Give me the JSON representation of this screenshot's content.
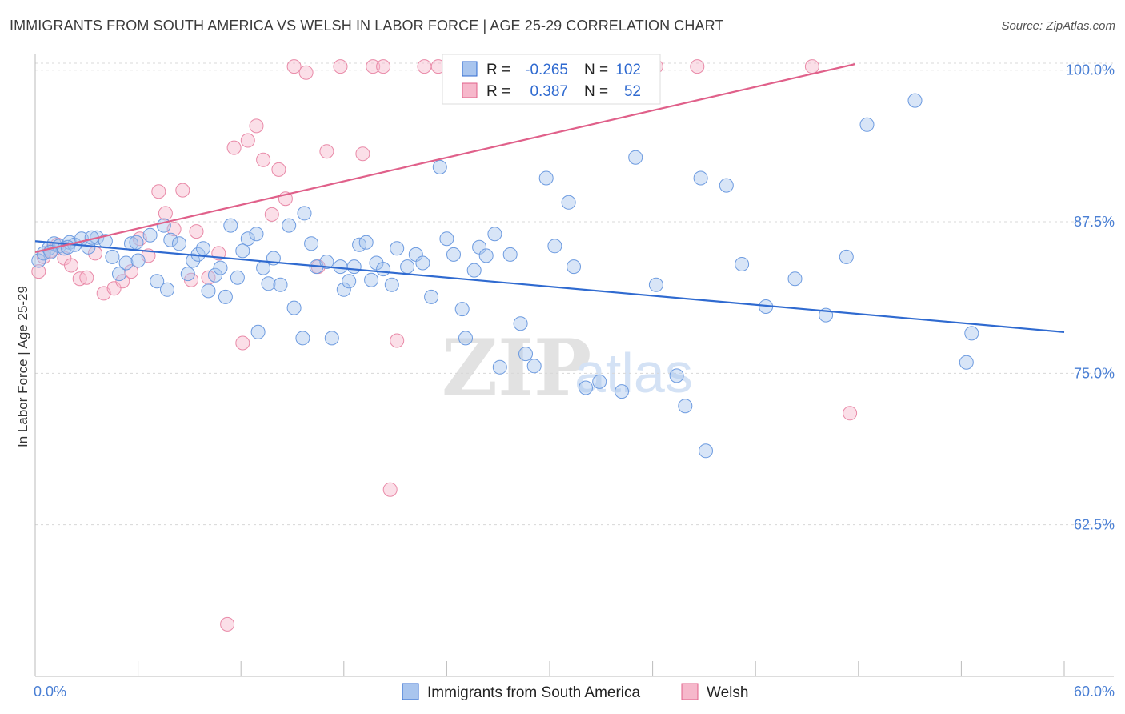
{
  "title": "IMMIGRANTS FROM SOUTH AMERICA VS WELSH IN LABOR FORCE | AGE 25-29 CORRELATION CHART",
  "source": "Source: ZipAtlas.com",
  "colors": {
    "blue": "#2f6ad0",
    "blue_fill": "#a9c5ee",
    "pink": "#e0608a",
    "pink_fill": "#f6b8cb",
    "tick": "#4a7fd4"
  },
  "legend_top": {
    "rows": [
      {
        "r_label": "R =",
        "r_value": "-0.265",
        "n_label": "N =",
        "n_value": "102"
      },
      {
        "r_label": "R =",
        "r_value": "0.387",
        "n_label": "N =",
        "n_value": "52"
      }
    ]
  },
  "watermark": {
    "zip": "ZIP",
    "atlas": "atlas"
  },
  "chart_data": {
    "type": "scatter",
    "title": "IMMIGRANTS FROM SOUTH AMERICA VS WELSH IN LABOR FORCE | AGE 25-29 CORRELATION CHART",
    "xlabel": "",
    "ylabel": "In Labor Force | Age 25-29",
    "xlim": [
      0,
      60
    ],
    "ylim": [
      50,
      101.3
    ],
    "x_tick_labels": [
      "0.0%",
      "60.0%"
    ],
    "y_ticks": [
      62.5,
      75.0,
      87.5,
      100.0
    ],
    "y_tick_labels": [
      "62.5%",
      "75.0%",
      "87.5%",
      "100.0%"
    ],
    "grid": "dashed horizontal",
    "legend_position": "bottom",
    "series": [
      {
        "name": "Immigrants from South America",
        "color": "#2f6ad0",
        "trend": {
          "x": [
            0,
            60
          ],
          "y": [
            85.9,
            78.4
          ]
        },
        "points": [
          [
            0.2,
            84.3
          ],
          [
            0.5,
            84.9
          ],
          [
            0.8,
            85.3
          ],
          [
            1.1,
            85.7
          ],
          [
            1.4,
            85.5
          ],
          [
            1.7,
            85.3
          ],
          [
            2.0,
            85.8
          ],
          [
            2.3,
            85.6
          ],
          [
            2.7,
            86.1
          ],
          [
            3.1,
            85.4
          ],
          [
            3.6,
            86.2
          ],
          [
            4.1,
            85.9
          ],
          [
            4.5,
            84.6
          ],
          [
            4.9,
            83.2
          ],
          [
            5.3,
            84.1
          ],
          [
            5.6,
            85.7
          ],
          [
            6.0,
            84.3
          ],
          [
            6.7,
            86.4
          ],
          [
            7.1,
            82.6
          ],
          [
            7.5,
            87.2
          ],
          [
            7.9,
            86.0
          ],
          [
            8.4,
            85.7
          ],
          [
            8.9,
            83.2
          ],
          [
            9.2,
            84.3
          ],
          [
            9.5,
            84.8
          ],
          [
            9.8,
            85.3
          ],
          [
            10.1,
            81.8
          ],
          [
            10.5,
            83.1
          ],
          [
            10.8,
            83.7
          ],
          [
            11.1,
            81.3
          ],
          [
            11.4,
            87.2
          ],
          [
            11.8,
            82.9
          ],
          [
            12.1,
            85.1
          ],
          [
            12.4,
            86.1
          ],
          [
            12.9,
            86.5
          ],
          [
            13.3,
            83.7
          ],
          [
            13.6,
            82.4
          ],
          [
            13.9,
            84.5
          ],
          [
            14.3,
            82.3
          ],
          [
            14.8,
            87.2
          ],
          [
            15.1,
            80.4
          ],
          [
            15.7,
            88.2
          ],
          [
            16.1,
            85.7
          ],
          [
            16.4,
            83.8
          ],
          [
            17.0,
            84.2
          ],
          [
            17.3,
            77.9
          ],
          [
            17.8,
            83.8
          ],
          [
            18.0,
            81.9
          ],
          [
            18.3,
            82.6
          ],
          [
            18.6,
            83.8
          ],
          [
            18.9,
            85.6
          ],
          [
            19.3,
            85.8
          ],
          [
            19.6,
            82.7
          ],
          [
            19.9,
            84.1
          ],
          [
            20.3,
            83.6
          ],
          [
            20.8,
            82.3
          ],
          [
            21.1,
            85.3
          ],
          [
            21.7,
            83.8
          ],
          [
            22.2,
            84.8
          ],
          [
            22.6,
            84.1
          ],
          [
            23.1,
            81.3
          ],
          [
            23.6,
            92.0
          ],
          [
            24.0,
            86.1
          ],
          [
            24.4,
            84.8
          ],
          [
            24.9,
            80.3
          ],
          [
            25.6,
            83.5
          ],
          [
            25.9,
            85.4
          ],
          [
            26.3,
            84.7
          ],
          [
            26.8,
            86.5
          ],
          [
            27.1,
            75.5
          ],
          [
            27.7,
            84.8
          ],
          [
            28.3,
            79.1
          ],
          [
            28.6,
            76.6
          ],
          [
            29.1,
            75.6
          ],
          [
            29.8,
            91.1
          ],
          [
            30.3,
            85.5
          ],
          [
            31.1,
            89.1
          ],
          [
            31.4,
            83.8
          ],
          [
            32.1,
            73.8
          ],
          [
            32.9,
            74.3
          ],
          [
            34.2,
            73.5
          ],
          [
            35.0,
            92.8
          ],
          [
            36.2,
            82.3
          ],
          [
            37.4,
            74.8
          ],
          [
            37.9,
            72.3
          ],
          [
            38.8,
            91.1
          ],
          [
            40.3,
            90.5
          ],
          [
            41.2,
            84.0
          ],
          [
            42.6,
            80.5
          ],
          [
            44.3,
            82.8
          ],
          [
            46.1,
            79.8
          ],
          [
            47.3,
            84.6
          ],
          [
            54.3,
            75.9
          ],
          [
            54.6,
            78.3
          ],
          [
            48.5,
            95.5
          ],
          [
            51.3,
            97.5
          ],
          [
            39.1,
            68.6
          ],
          [
            25.1,
            77.9
          ],
          [
            15.6,
            77.9
          ],
          [
            13.0,
            78.4
          ],
          [
            7.7,
            81.9
          ],
          [
            1.9,
            85.4
          ],
          [
            3.3,
            86.2
          ],
          [
            5.9,
            85.8
          ],
          [
            0.9,
            85.0
          ]
        ]
      },
      {
        "name": "Welsh",
        "color": "#e0608a",
        "trend": {
          "x": [
            0,
            47.8
          ],
          "y": [
            85.0,
            100.5
          ]
        },
        "points": [
          [
            0.2,
            83.4
          ],
          [
            0.5,
            84.6
          ],
          [
            0.9,
            85.1
          ],
          [
            1.3,
            85.6
          ],
          [
            1.7,
            84.5
          ],
          [
            2.1,
            83.9
          ],
          [
            2.6,
            82.8
          ],
          [
            3.0,
            82.9
          ],
          [
            3.5,
            84.9
          ],
          [
            4.0,
            81.6
          ],
          [
            4.6,
            82.0
          ],
          [
            5.1,
            82.6
          ],
          [
            5.6,
            83.4
          ],
          [
            6.1,
            86.1
          ],
          [
            6.6,
            84.7
          ],
          [
            7.2,
            90.0
          ],
          [
            7.6,
            88.2
          ],
          [
            8.1,
            86.9
          ],
          [
            8.6,
            90.1
          ],
          [
            9.1,
            82.7
          ],
          [
            9.4,
            86.7
          ],
          [
            10.1,
            82.9
          ],
          [
            10.7,
            84.9
          ],
          [
            11.2,
            54.3
          ],
          [
            11.6,
            93.6
          ],
          [
            12.1,
            77.5
          ],
          [
            12.4,
            94.2
          ],
          [
            12.9,
            95.4
          ],
          [
            13.3,
            92.6
          ],
          [
            13.8,
            88.1
          ],
          [
            14.2,
            91.8
          ],
          [
            14.6,
            89.4
          ],
          [
            15.1,
            100.3
          ],
          [
            15.8,
            99.8
          ],
          [
            16.5,
            83.8
          ],
          [
            17.0,
            93.3
          ],
          [
            17.8,
            100.3
          ],
          [
            19.1,
            93.1
          ],
          [
            19.7,
            100.3
          ],
          [
            20.3,
            100.3
          ],
          [
            20.7,
            65.4
          ],
          [
            21.1,
            77.7
          ],
          [
            22.7,
            100.3
          ],
          [
            23.5,
            100.3
          ],
          [
            26.9,
            100.3
          ],
          [
            28.2,
            100.3
          ],
          [
            36.2,
            100.3
          ],
          [
            38.6,
            100.3
          ],
          [
            47.5,
            71.7
          ],
          [
            45.3,
            100.3
          ],
          [
            33.1,
            100.3
          ],
          [
            29.1,
            100.3
          ]
        ]
      }
    ]
  }
}
